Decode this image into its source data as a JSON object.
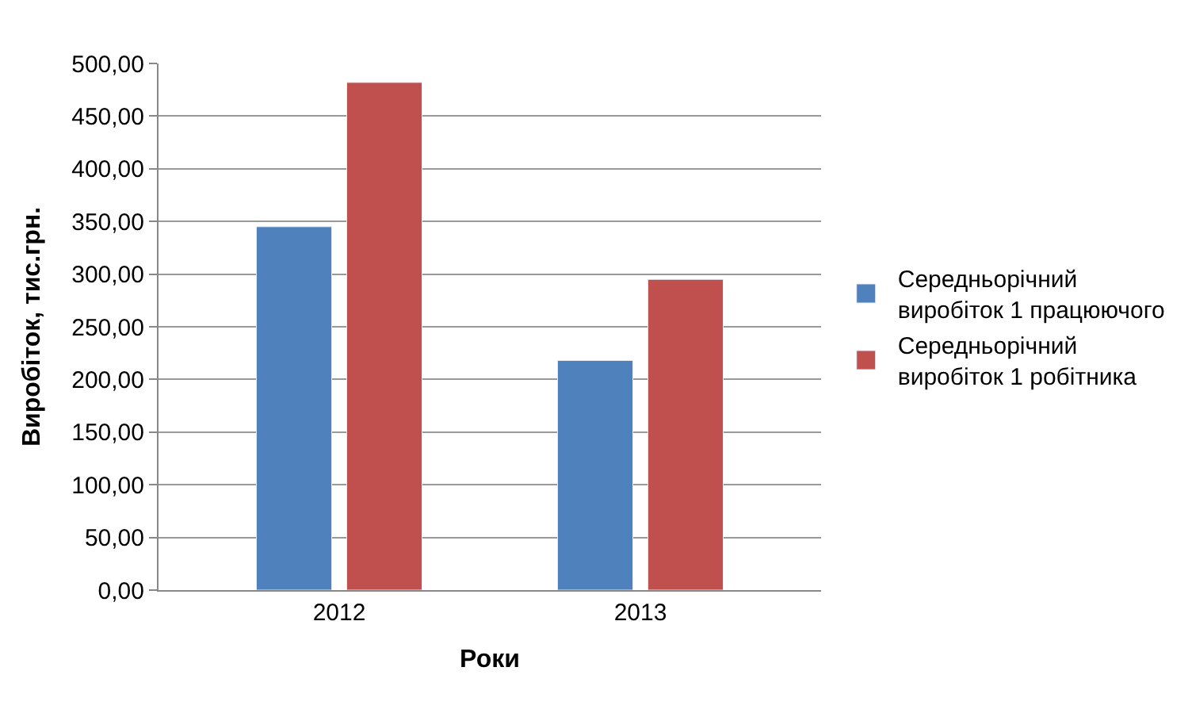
{
  "chart_data": {
    "type": "bar",
    "xlabel": "Роки",
    "ylabel": "Виробіток, тис.грн.",
    "categories": [
      "2012",
      "2013"
    ],
    "series": [
      {
        "name": "Середньорічний виробіток 1 працюючого",
        "color": "#4f81bd",
        "values": [
          345,
          218
        ]
      },
      {
        "name": "Середньорічний виробіток 1 робітника",
        "color": "#c0504d",
        "values": [
          482,
          295
        ]
      }
    ],
    "ylim": [
      0,
      500
    ],
    "yticks": [
      {
        "value": 0,
        "label": "0,00"
      },
      {
        "value": 50,
        "label": "50,00"
      },
      {
        "value": 100,
        "label": "100,00"
      },
      {
        "value": 150,
        "label": "150,00"
      },
      {
        "value": 200,
        "label": "200,00"
      },
      {
        "value": 250,
        "label": "250,00"
      },
      {
        "value": 300,
        "label": "300,00"
      },
      {
        "value": 350,
        "label": "350,00"
      },
      {
        "value": 400,
        "label": "400,00"
      },
      {
        "value": 450,
        "label": "450,00"
      },
      {
        "value": 500,
        "label": "500,00"
      }
    ],
    "grid": "y",
    "legend": "right"
  }
}
